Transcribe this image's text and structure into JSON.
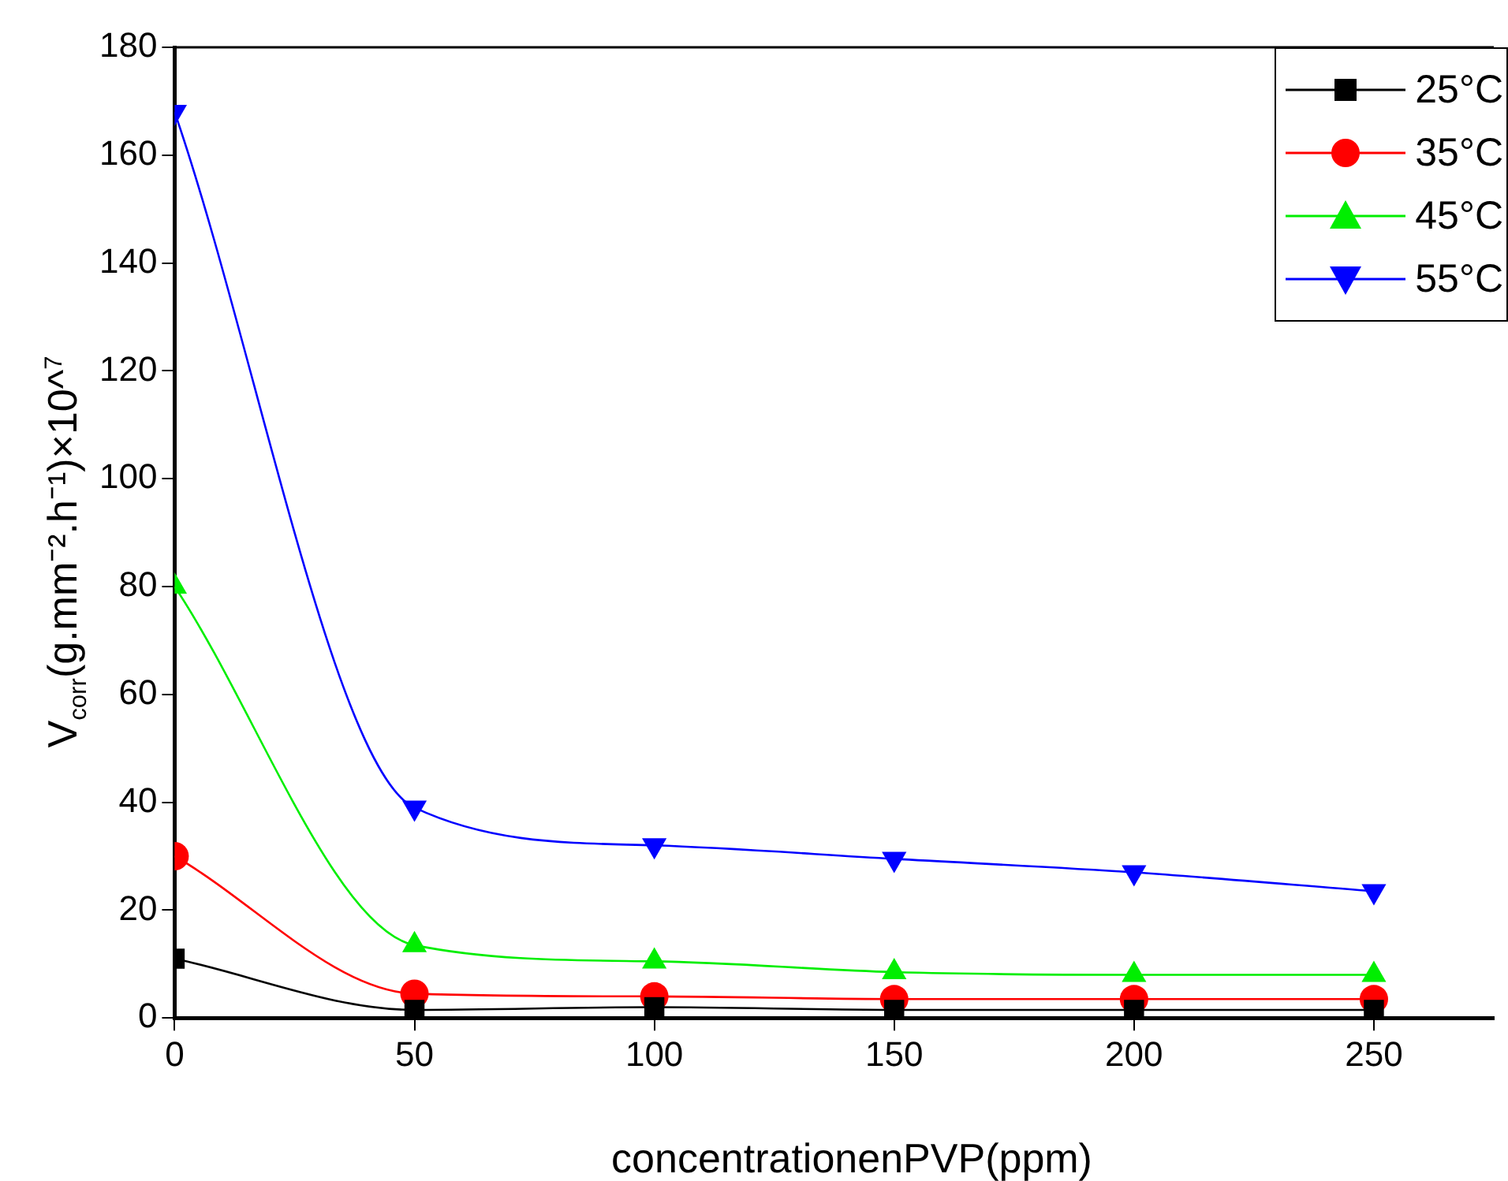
{
  "chart_data": {
    "type": "line",
    "xlabel": "concentrationenPVP(ppm)",
    "ylabel": "V$_{corr}$(g.mm⁻².h⁻¹)×10^$^{7}$",
    "x": [
      0,
      50,
      100,
      150,
      200,
      250
    ],
    "series": [
      {
        "name": "25°C",
        "color": "#000000",
        "marker": "square",
        "values": [
          11,
          1.5,
          2,
          1.5,
          1.5,
          1.5
        ]
      },
      {
        "name": "35°C",
        "color": "#ff0000",
        "marker": "circle",
        "values": [
          30,
          4.5,
          4,
          3.5,
          3.5,
          3.5
        ]
      },
      {
        "name": "45°C",
        "color": "#00ee00",
        "marker": "triangle",
        "values": [
          80,
          13.5,
          10.5,
          8.5,
          8,
          8
        ]
      },
      {
        "name": "55°C",
        "color": "#0000ff",
        "marker": "triangle_down",
        "values": [
          168,
          39,
          32,
          29.5,
          27,
          23.5
        ]
      }
    ],
    "xlim": [
      0,
      275
    ],
    "xticks": [
      0,
      50,
      100,
      150,
      200,
      250
    ],
    "ylim": [
      0,
      180
    ],
    "yticks": [
      0,
      20,
      40,
      60,
      80,
      100,
      120,
      140,
      160,
      180
    ],
    "grid": false,
    "legend": "top right",
    "line_style": "solid"
  }
}
